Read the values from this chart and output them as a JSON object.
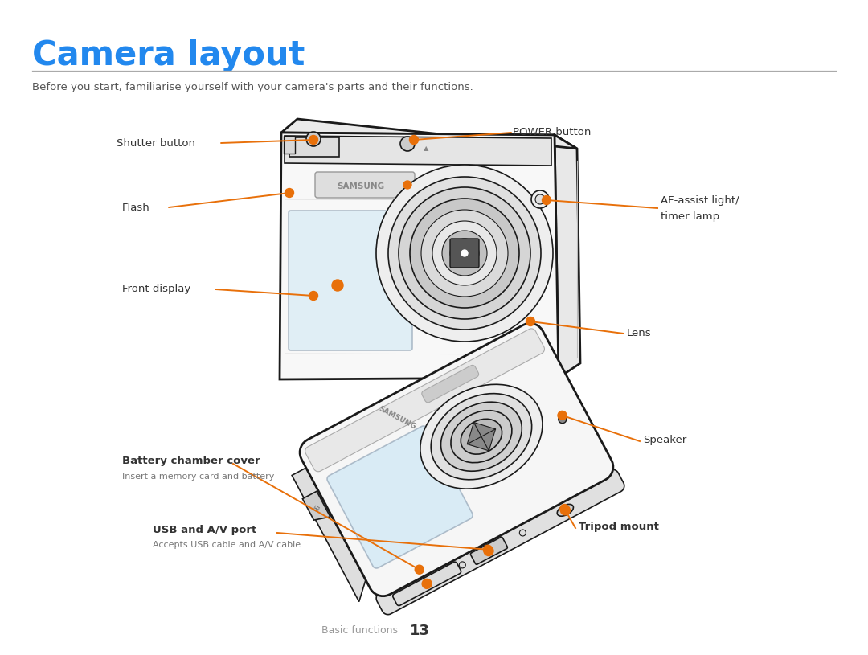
{
  "title": "Camera layout",
  "title_color": "#2288EE",
  "subtitle": "Before you start, familiarise yourself with your camera's parts and their functions.",
  "subtitle_color": "#555555",
  "footer_text": "Basic functions",
  "footer_number": "13",
  "background_color": "#FFFFFF",
  "annotation_color": "#E8700A",
  "text_color": "#333333",
  "camera_line_color": "#1A1A1A",
  "camera_fill": "#F8F8F8",
  "camera_shadow": "#EEEEEE",
  "display_fill": "#D8EBF5",
  "display_edge": "#AABBCC"
}
